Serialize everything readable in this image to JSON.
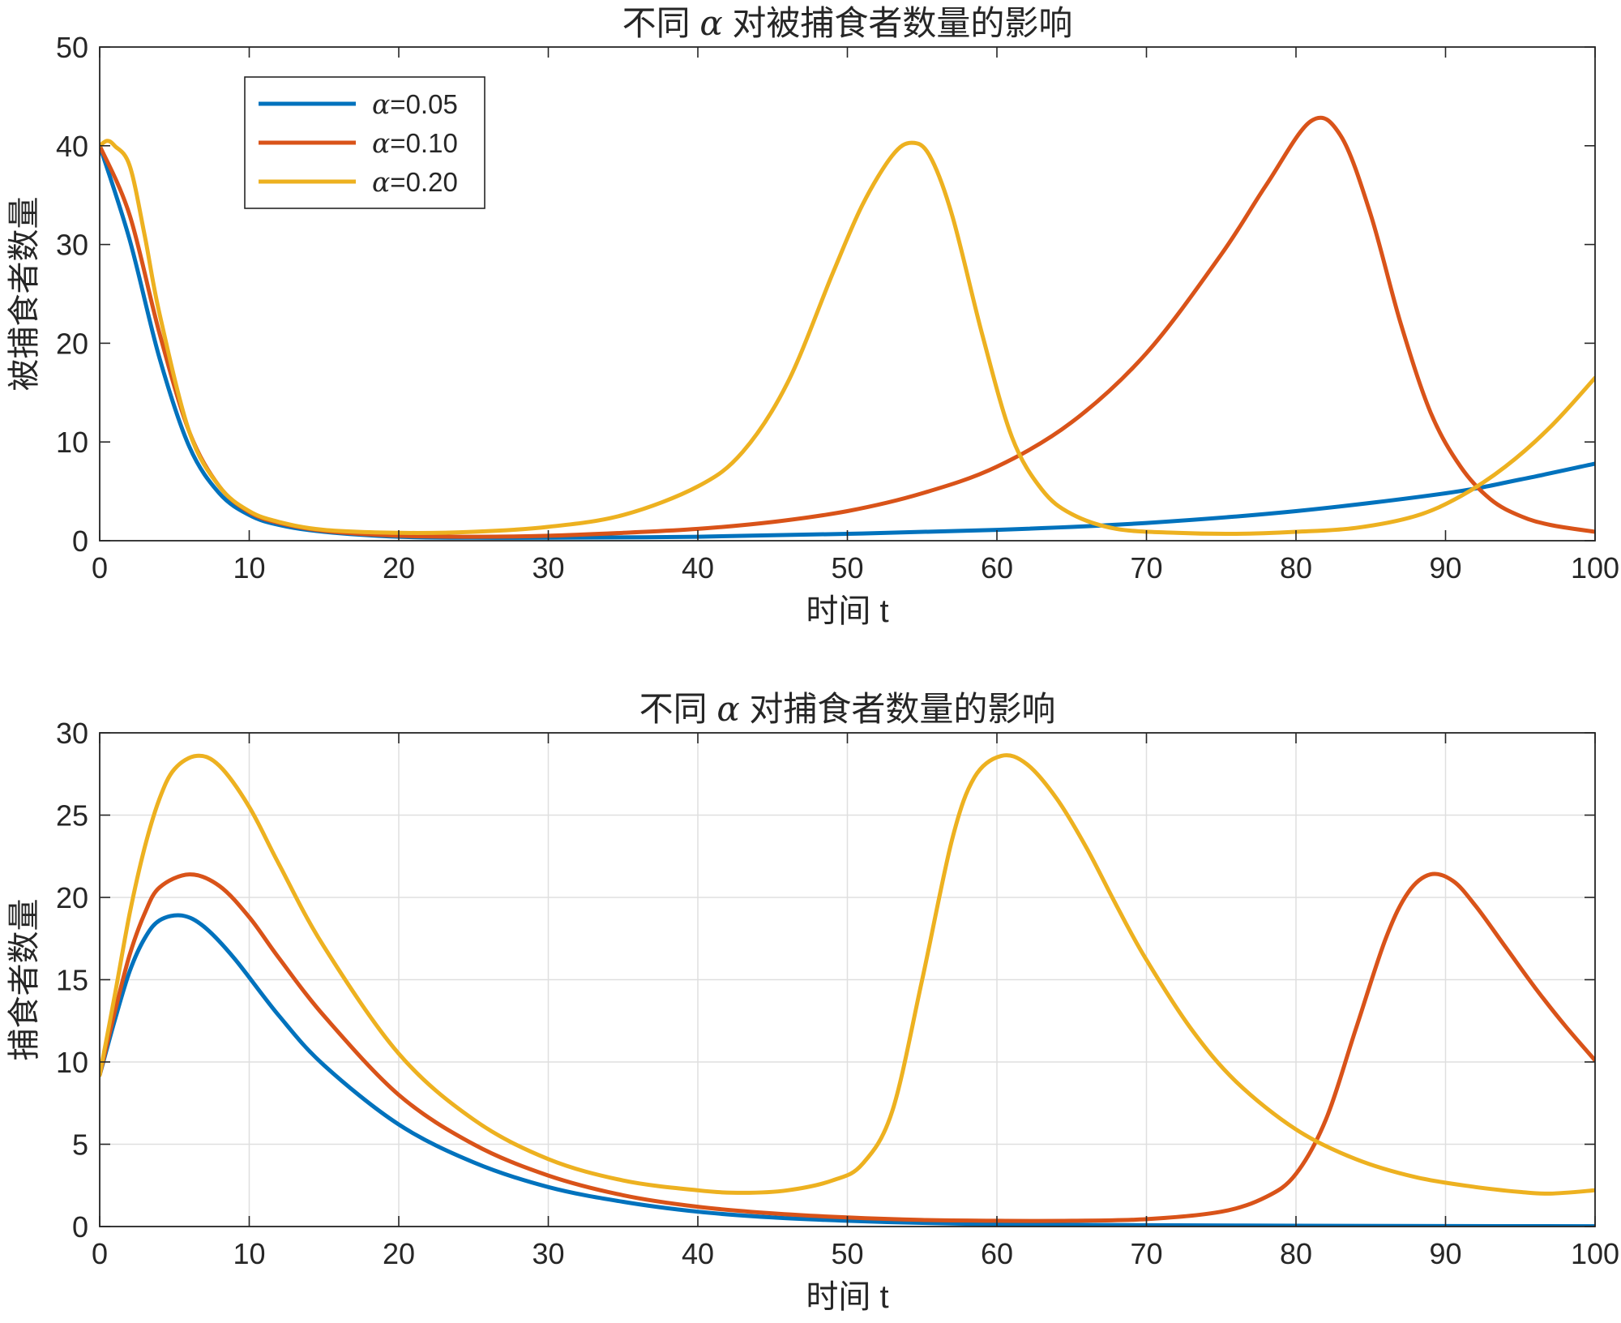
{
  "chart_data": [
    {
      "type": "line",
      "title_pre": "不同 ",
      "title_sym": "α",
      "title_post": " 对被捕食者数量的影响",
      "xlabel": "时间 t",
      "ylabel": "被捕食者数量",
      "xlim": [
        0,
        100
      ],
      "ylim": [
        0,
        50
      ],
      "xticks": [
        0,
        10,
        20,
        30,
        40,
        50,
        60,
        70,
        80,
        90,
        100
      ],
      "yticks": [
        0,
        10,
        20,
        30,
        40,
        50
      ],
      "grid": false,
      "legend": "top-left",
      "series": [
        {
          "name_sym": "α",
          "name_rest": "=0.05",
          "color": "#0072BD",
          "x": [
            0,
            2,
            4,
            6,
            8,
            10,
            12,
            15,
            20,
            25,
            30,
            40,
            50,
            60,
            70,
            80,
            90,
            95,
            100
          ],
          "y": [
            40,
            30.5,
            18.5,
            9.5,
            4.8,
            2.6,
            1.6,
            0.9,
            0.4,
            0.3,
            0.3,
            0.4,
            0.7,
            1.1,
            1.8,
            3.0,
            4.8,
            6.2,
            7.8
          ]
        },
        {
          "name_sym": "α",
          "name_rest": "=0.10",
          "color": "#D95319",
          "x": [
            0,
            2,
            4,
            6,
            8,
            10,
            12,
            15,
            20,
            25,
            30,
            35,
            40,
            45,
            50,
            55,
            60,
            65,
            70,
            75,
            78,
            81,
            83,
            85,
            87,
            89,
            91,
            93,
            95,
            97,
            100
          ],
          "y": [
            40,
            33,
            21,
            11,
            5.5,
            2.9,
            1.8,
            1.0,
            0.5,
            0.4,
            0.5,
            0.8,
            1.2,
            1.9,
            3.0,
            4.8,
            7.5,
            12,
            19,
            29,
            36,
            42.5,
            41,
            33,
            22,
            13,
            7.5,
            4.2,
            2.5,
            1.6,
            0.9
          ]
        },
        {
          "name_sym": "α",
          "name_rest": "=0.20",
          "color": "#EDB120",
          "x": [
            0,
            0.5,
            1,
            2,
            3,
            4,
            6,
            8,
            10,
            12,
            15,
            20,
            25,
            30,
            35,
            40,
            43,
            46,
            49,
            51,
            53,
            54.3,
            55.5,
            57,
            59,
            61,
            63,
            65,
            68,
            72,
            76,
            80,
            84,
            88,
            91,
            94,
            97,
            100
          ],
          "y": [
            40,
            40.5,
            40,
            38,
            31,
            23,
            11,
            5.5,
            3,
            1.9,
            1.1,
            0.8,
            0.9,
            1.4,
            2.6,
            5.5,
            9,
            16,
            27,
            34,
            39,
            40.3,
            39,
            33,
            21,
            10.5,
            5.2,
            2.7,
            1.2,
            0.8,
            0.7,
            0.9,
            1.3,
            2.5,
            4.5,
            7.5,
            11.5,
            16.5
          ]
        }
      ]
    },
    {
      "type": "line",
      "title_pre": "不同 ",
      "title_sym": "α",
      "title_post": " 对捕食者数量的影响",
      "xlabel": "时间 t",
      "ylabel": "捕食者数量",
      "xlim": [
        0,
        100
      ],
      "ylim": [
        0,
        30
      ],
      "xticks": [
        0,
        10,
        20,
        30,
        40,
        50,
        60,
        70,
        80,
        90,
        100
      ],
      "yticks": [
        0,
        5,
        10,
        15,
        20,
        25,
        30
      ],
      "grid": true,
      "legend": "none",
      "series": [
        {
          "color": "#0072BD",
          "x": [
            0,
            1,
            2,
            3,
            4,
            5.5,
            7,
            9,
            12,
            15,
            20,
            25,
            30,
            35,
            40,
            45,
            50,
            55,
            60,
            65,
            70,
            80,
            90,
            100
          ],
          "y": [
            9.2,
            12.5,
            15.5,
            17.5,
            18.6,
            18.9,
            18.2,
            16.3,
            12.8,
            9.8,
            6.2,
            3.9,
            2.4,
            1.5,
            0.9,
            0.55,
            0.35,
            0.22,
            0.15,
            0.11,
            0.08,
            0.05,
            0.03,
            0.02
          ]
        },
        {
          "color": "#D95319",
          "x": [
            0,
            1,
            2,
            3,
            4,
            6,
            8,
            10,
            12,
            15,
            20,
            25,
            30,
            35,
            40,
            45,
            50,
            55,
            60,
            65,
            70,
            75,
            78,
            80,
            82,
            84,
            86,
            87.5,
            89,
            90.5,
            92,
            94,
            96,
            98,
            100
          ],
          "y": [
            9.2,
            13,
            16.5,
            19,
            20.6,
            21.4,
            20.7,
            18.8,
            16.3,
            12.8,
            8,
            5,
            3.1,
            1.9,
            1.2,
            0.8,
            0.55,
            0.4,
            0.35,
            0.35,
            0.45,
            0.9,
            1.8,
            3.2,
            6.5,
            12,
            17.5,
            20.3,
            21.4,
            21,
            19.5,
            17,
            14.5,
            12.2,
            10.1
          ]
        },
        {
          "color": "#EDB120",
          "x": [
            0,
            1,
            2,
            3,
            4,
            5,
            6.5,
            8,
            10,
            12,
            15,
            20,
            25,
            30,
            35,
            40,
            43,
            46,
            49,
            51,
            53,
            55,
            57,
            58.5,
            60.3,
            62,
            64,
            66,
            68,
            70,
            73,
            76,
            80,
            84,
            88,
            92,
            95,
            97,
            100
          ],
          "y": [
            9.2,
            14,
            19,
            23,
            26,
            27.8,
            28.6,
            28,
            25.5,
            22,
            17,
            10.5,
            6.5,
            4.1,
            2.8,
            2.2,
            2.05,
            2.2,
            2.8,
            3.8,
            7,
            15,
            23.5,
            27.3,
            28.6,
            28.1,
            26,
            23,
            19.5,
            16.2,
            12,
            8.8,
            5.9,
            4.1,
            3.0,
            2.4,
            2.1,
            2.0,
            2.2
          ]
        }
      ]
    }
  ]
}
